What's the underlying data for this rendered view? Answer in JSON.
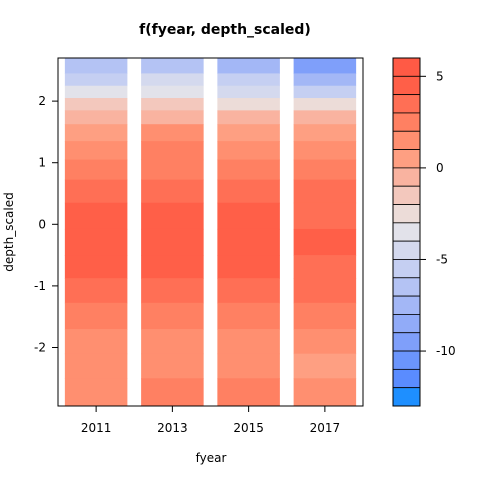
{
  "chart_data": {
    "type": "heatmap",
    "title": "f(fyear, depth_scaled)",
    "xlabel": "fyear",
    "ylabel": "depth_scaled",
    "x_ticks": [
      "2011",
      "2013",
      "2015",
      "2017"
    ],
    "y_ticks": [
      2,
      1,
      0,
      -1,
      -2
    ],
    "ylim": [
      -2.95,
      2.7
    ],
    "columns": [
      {
        "x": "2011",
        "values": [
          {
            "y": 2.55,
            "v": -7.0
          },
          {
            "y": 2.35,
            "v": -5.5
          },
          {
            "y": 2.15,
            "v": -4.0
          },
          {
            "y": 1.95,
            "v": -2.0
          },
          {
            "y": 1.75,
            "v": -0.5
          },
          {
            "y": 1.5,
            "v": 0.5
          },
          {
            "y": 1.2,
            "v": 1.5
          },
          {
            "y": 0.9,
            "v": 2.5
          },
          {
            "y": 0.55,
            "v": 3.2
          },
          {
            "y": 0.15,
            "v": 4.0
          },
          {
            "y": -0.3,
            "v": 4.2
          },
          {
            "y": -0.7,
            "v": 4.0
          },
          {
            "y": -1.05,
            "v": 3.2
          },
          {
            "y": -1.5,
            "v": 2.5
          },
          {
            "y": -1.9,
            "v": 1.5
          },
          {
            "y": -2.3,
            "v": 1.0
          },
          {
            "y": -2.7,
            "v": 1.8
          }
        ]
      },
      {
        "x": "2013",
        "values": [
          {
            "y": 2.55,
            "v": -6.5
          },
          {
            "y": 2.35,
            "v": -5.0
          },
          {
            "y": 2.15,
            "v": -3.5
          },
          {
            "y": 1.95,
            "v": -1.5
          },
          {
            "y": 1.75,
            "v": -0.2
          },
          {
            "y": 1.5,
            "v": 1.0
          },
          {
            "y": 1.2,
            "v": 2.0
          },
          {
            "y": 0.9,
            "v": 2.8
          },
          {
            "y": 0.55,
            "v": 3.5
          },
          {
            "y": 0.15,
            "v": 4.2
          },
          {
            "y": -0.3,
            "v": 4.5
          },
          {
            "y": -0.7,
            "v": 4.2
          },
          {
            "y": -1.05,
            "v": 3.5
          },
          {
            "y": -1.5,
            "v": 2.7
          },
          {
            "y": -1.9,
            "v": 1.7
          },
          {
            "y": -2.3,
            "v": 1.2
          },
          {
            "y": -2.7,
            "v": 2.0
          }
        ]
      },
      {
        "x": "2015",
        "values": [
          {
            "y": 2.55,
            "v": -7.5
          },
          {
            "y": 2.35,
            "v": -6.0
          },
          {
            "y": 2.15,
            "v": -4.5
          },
          {
            "y": 1.95,
            "v": -2.5
          },
          {
            "y": 1.75,
            "v": -1.0
          },
          {
            "y": 1.5,
            "v": 0.5
          },
          {
            "y": 1.2,
            "v": 1.8
          },
          {
            "y": 0.9,
            "v": 2.8
          },
          {
            "y": 0.55,
            "v": 3.8
          },
          {
            "y": 0.15,
            "v": 4.6
          },
          {
            "y": -0.3,
            "v": 4.8
          },
          {
            "y": -0.7,
            "v": 4.6
          },
          {
            "y": -1.05,
            "v": 3.8
          },
          {
            "y": -1.5,
            "v": 2.8
          },
          {
            "y": -1.9,
            "v": 1.8
          },
          {
            "y": -2.3,
            "v": 1.5
          },
          {
            "y": -2.7,
            "v": 2.5
          }
        ]
      },
      {
        "x": "2017",
        "values": [
          {
            "y": 2.55,
            "v": -10.0
          },
          {
            "y": 2.35,
            "v": -7.5
          },
          {
            "y": 2.15,
            "v": -5.5
          },
          {
            "y": 1.95,
            "v": -3.0
          },
          {
            "y": 1.75,
            "v": -1.0
          },
          {
            "y": 1.5,
            "v": 0.5
          },
          {
            "y": 1.2,
            "v": 1.5
          },
          {
            "y": 0.9,
            "v": 2.5
          },
          {
            "y": 0.55,
            "v": 3.2
          },
          {
            "y": 0.15,
            "v": 3.8
          },
          {
            "y": -0.3,
            "v": 4.0
          },
          {
            "y": -0.7,
            "v": 3.8
          },
          {
            "y": -1.05,
            "v": 3.0
          },
          {
            "y": -1.5,
            "v": 2.2
          },
          {
            "y": -1.9,
            "v": 1.2
          },
          {
            "y": -2.3,
            "v": 0.8
          },
          {
            "y": -2.7,
            "v": 1.5
          }
        ]
      }
    ],
    "colorbar": {
      "range": [
        -13,
        6
      ],
      "ticks": [
        5,
        0,
        -5,
        -10
      ],
      "levels": [
        {
          "from": 5,
          "to": 6,
          "color": "#ff5a45"
        },
        {
          "from": 4,
          "to": 5,
          "color": "#ff5f48"
        },
        {
          "from": 3,
          "to": 4,
          "color": "#ff6f55"
        },
        {
          "from": 2,
          "to": 3,
          "color": "#ff8062"
        },
        {
          "from": 1,
          "to": 2,
          "color": "#ff8f70"
        },
        {
          "from": 0,
          "to": 1,
          "color": "#fe9f82"
        },
        {
          "from": -1,
          "to": 0,
          "color": "#f9b3a0"
        },
        {
          "from": -2,
          "to": -1,
          "color": "#f3c8bd"
        },
        {
          "from": -3,
          "to": -2,
          "color": "#ecdcd8"
        },
        {
          "from": -4,
          "to": -3,
          "color": "#e2e2ea"
        },
        {
          "from": -5,
          "to": -4,
          "color": "#d4d9ee"
        },
        {
          "from": -6,
          "to": -5,
          "color": "#c5cff2"
        },
        {
          "from": -7,
          "to": -6,
          "color": "#b4c3f4"
        },
        {
          "from": -8,
          "to": -7,
          "color": "#a3b7f6"
        },
        {
          "from": -9,
          "to": -8,
          "color": "#91abf8"
        },
        {
          "from": -10,
          "to": -9,
          "color": "#7f9ffa"
        },
        {
          "from": -11,
          "to": -10,
          "color": "#6b95fc"
        },
        {
          "from": -12,
          "to": -11,
          "color": "#5a8cff"
        },
        {
          "from": -13,
          "to": -12,
          "color": "#1e8fff"
        }
      ]
    }
  }
}
